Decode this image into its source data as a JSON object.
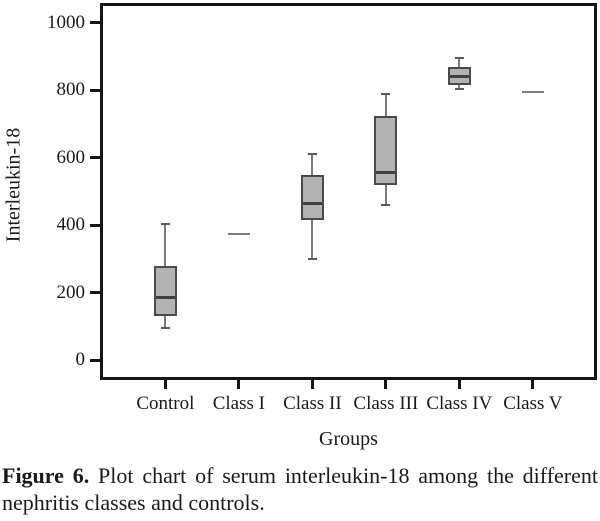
{
  "figure": {
    "caption_bold": "Figure 6.",
    "caption_rest": " Plot chart of serum interleukin-18 among the different nephritis classes and controls."
  },
  "chart_data": {
    "type": "boxplot",
    "title": "",
    "xlabel": "Groups",
    "ylabel": "Interleukin-18",
    "ylim": [
      -50,
      1050
    ],
    "yticks": [
      0,
      200,
      400,
      600,
      800,
      1000
    ],
    "grid": false,
    "legend": null,
    "categories": [
      "Control",
      "Class I",
      "Class II",
      "Class III",
      "Class IV",
      "Class V"
    ],
    "series": [
      {
        "name": "Control",
        "whisker_low": 95,
        "q1": 130,
        "median": 185,
        "q3": 280,
        "whisker_high": 405
      },
      {
        "name": "Class I",
        "value": 375
      },
      {
        "name": "Class II",
        "whisker_low": 300,
        "q1": 415,
        "median": 465,
        "q3": 550,
        "whisker_high": 610
      },
      {
        "name": "Class III",
        "whisker_low": 460,
        "q1": 520,
        "median": 555,
        "q3": 725,
        "whisker_high": 790
      },
      {
        "name": "Class IV",
        "whisker_low": 805,
        "q1": 815,
        "median": 840,
        "q3": 870,
        "whisker_high": 895
      },
      {
        "name": "Class V",
        "value": 795
      }
    ]
  },
  "colors": {
    "axis": "#151515",
    "box_fill": "#b2b2b2",
    "box_border": "#4a4a4a",
    "median": "#3f3f3f",
    "whisker": "#7a7a7a",
    "whisker_cap": "#5a5a5a",
    "single_line": "#7d7d7d"
  }
}
